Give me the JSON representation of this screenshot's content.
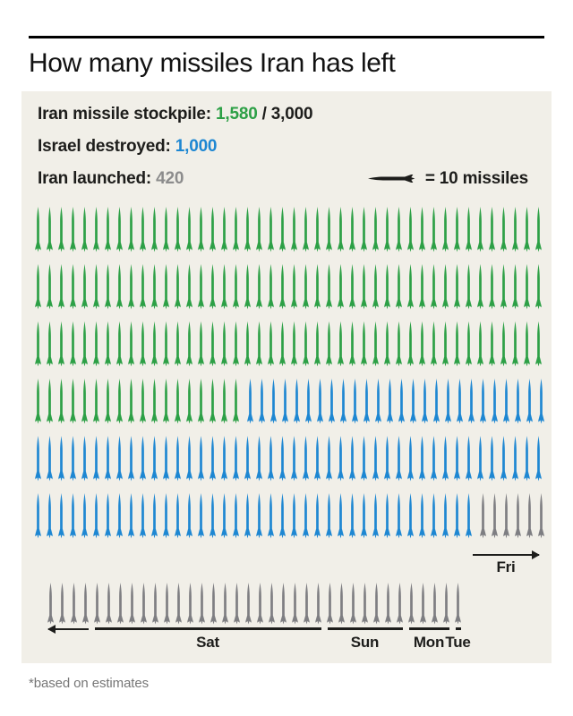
{
  "title": "How many missiles Iran has left",
  "footnote": "*based on estimates",
  "palette": {
    "green": "#2da046",
    "blue": "#1e87d2",
    "gray": "#7e7e82",
    "dark": "#1d1d1b",
    "label_gray": "#8c8c8c",
    "background_panel": "#f1efe8"
  },
  "legend": {
    "lines": [
      {
        "parts": [
          {
            "text": "Iran missile stockpile: ",
            "color": "dark"
          },
          {
            "text": "1,580",
            "color": "green"
          },
          {
            "text": " / 3,000",
            "color": "dark"
          }
        ]
      },
      {
        "parts": [
          {
            "text": "Israel destroyed: ",
            "color": "dark"
          },
          {
            "text": "1,000",
            "color": "blue"
          }
        ]
      },
      {
        "parts": [
          {
            "text": "Iran launched: ",
            "color": "dark"
          },
          {
            "text": "420",
            "color": "label_gray"
          }
        ]
      }
    ],
    "key": {
      "icon": "missile-left-icon",
      "text": "= 10 missiles"
    }
  },
  "chart_data": {
    "type": "pictogram",
    "title": "How many missiles Iran has left",
    "unit_per_icon": 10,
    "total_stockpile": 3000,
    "series": [
      {
        "name": "Iran missile stockpile (remaining)",
        "value": 1580,
        "icons": 158,
        "color": "green"
      },
      {
        "name": "Israel destroyed",
        "value": 1000,
        "icons": 100,
        "color": "blue"
      },
      {
        "name": "Iran launched",
        "value": 420,
        "icons": 42,
        "color": "gray"
      }
    ],
    "rows": [
      {
        "segments": [
          {
            "color": "green",
            "count": 44
          }
        ]
      },
      {
        "segments": [
          {
            "color": "green",
            "count": 44
          }
        ]
      },
      {
        "segments": [
          {
            "color": "green",
            "count": 44
          }
        ]
      },
      {
        "segments": [
          {
            "color": "green",
            "count": 18
          },
          {
            "color": "blue",
            "count": 26
          }
        ]
      },
      {
        "segments": [
          {
            "color": "blue",
            "count": 44
          }
        ]
      },
      {
        "segments": [
          {
            "color": "blue",
            "count": 38
          },
          {
            "color": "gray",
            "count": 6
          }
        ]
      }
    ],
    "bottom_row": {
      "segments": [
        {
          "color": "gray",
          "count": 36
        }
      ]
    },
    "fri_annotation": {
      "label": "Fri",
      "icons": 6,
      "arrow": "right"
    },
    "timeline": [
      {
        "type": "arrow-left",
        "icons": 4,
        "label": ""
      },
      {
        "type": "day",
        "icons": 20,
        "label": "Sat"
      },
      {
        "type": "day",
        "icons": 7,
        "label": "Sun"
      },
      {
        "type": "day",
        "icons": 4,
        "label": "Mon"
      },
      {
        "type": "day",
        "icons": 1,
        "label": "Tue"
      }
    ]
  }
}
